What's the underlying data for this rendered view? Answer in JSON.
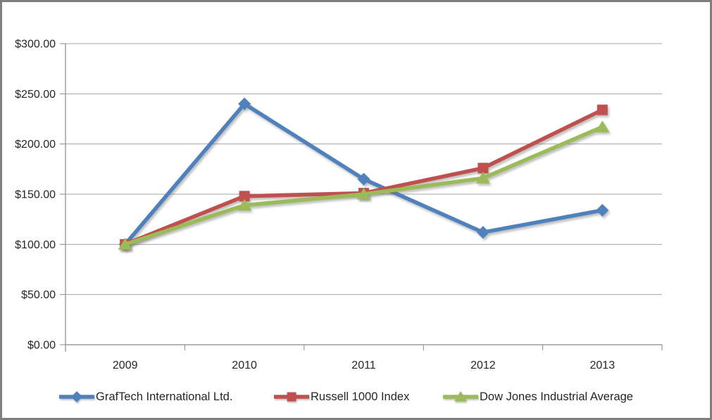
{
  "chart_data": {
    "type": "line",
    "title": "",
    "categories": [
      "2009",
      "2010",
      "2011",
      "2012",
      "2013"
    ],
    "series": [
      {
        "name": "GrafTech International Ltd.",
        "color": "#4f81bd",
        "marker": "diamond",
        "values": [
          100,
          240,
          165,
          112,
          134
        ]
      },
      {
        "name": "Russell 1000 Index",
        "color": "#c0504d",
        "marker": "square",
        "values": [
          100,
          148,
          151,
          176,
          234
        ]
      },
      {
        "name": "Dow Jones Industrial Average",
        "color": "#9bbb59",
        "marker": "triangle",
        "values": [
          100,
          139,
          150,
          166,
          217
        ]
      }
    ],
    "ylim": [
      0,
      300
    ],
    "ytick_step": 50,
    "ytick_labels": [
      "$0.00",
      "$50.00",
      "$100.00",
      "$150.00",
      "$200.00",
      "$250.00",
      "$300.00"
    ],
    "grid": true,
    "legend_position": "bottom"
  },
  "colors": {
    "grid_line": "#a6a6a6",
    "axis_line": "#898989",
    "tick_text": "#262626",
    "frame_border": "#7f7f7f",
    "background": "#ffffff"
  }
}
